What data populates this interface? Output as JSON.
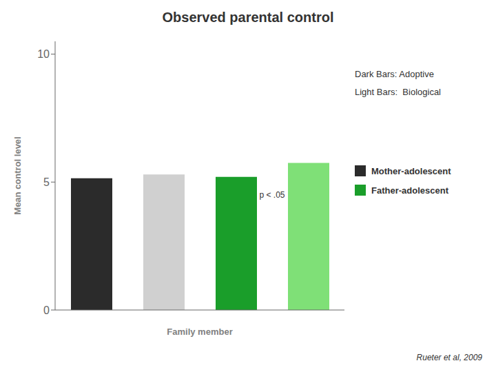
{
  "chart_data": {
    "type": "bar",
    "title": "Observed parental control",
    "xlabel": "Family member",
    "ylabel": "Mean control level",
    "categories": [
      null,
      null,
      null,
      null
    ],
    "series": [
      {
        "name": "Mother-adolescent",
        "color": "#2b2b2b",
        "colors": [
          "#2b2b2b",
          "#d0d0d0",
          null,
          null
        ],
        "values": [
          5.15,
          5.3,
          null,
          null
        ]
      },
      {
        "name": "Father-adolescent",
        "color": "#1a9e2a",
        "colors": [
          null,
          null,
          "#1a9e2a",
          "#7fe077"
        ],
        "values": [
          null,
          null,
          5.2,
          5.75
        ]
      }
    ],
    "ylim": [
      0,
      10.5
    ],
    "yticks": [
      0,
      5,
      10
    ],
    "tick_labels": "y",
    "grid": false,
    "annotations": [
      "p < .05",
      "Dark Bars: Adoptive",
      "Light Bars:  Biological",
      "Rueter et al, 2009"
    ]
  }
}
